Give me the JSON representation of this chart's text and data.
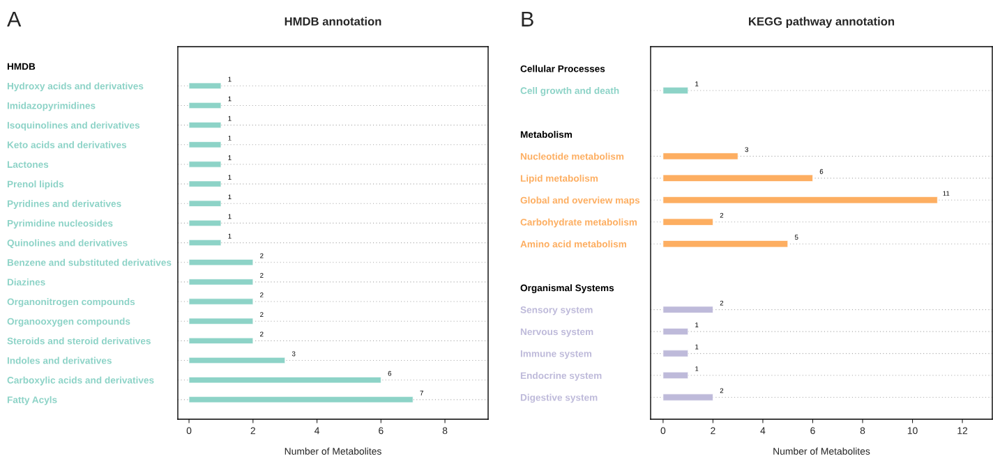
{
  "chart_data": [
    {
      "type": "bar",
      "orientation": "horizontal",
      "title": "HMDB annotation",
      "xlabel": "Number of Metabolites",
      "annotations": [
        "A"
      ],
      "categories": [
        "HMDB",
        "Hydroxy acids and derivatives",
        "Imidazopyrimidines",
        "Isoquinolines and derivatives",
        "Keto acids and derivatives",
        "Lactones",
        "Prenol lipids",
        "Pyridines and derivatives",
        "Pyrimidine nucleosides",
        "Quinolines and derivatives",
        "Benzene and substituted derivatives",
        "Diazines",
        "Organonitrogen compounds",
        "Organooxygen compounds",
        "Steroids and steroid derivatives",
        "Indoles and derivatives",
        "Carboxylic acids and derivatives",
        "Fatty Acyls"
      ],
      "series": [
        {
          "color": "#8dd3c7",
          "values": [
            null,
            1,
            1,
            1,
            1,
            1,
            1,
            1,
            1,
            1,
            2,
            2,
            2,
            2,
            2,
            3,
            6,
            7
          ]
        }
      ],
      "xlim": [
        -0.35,
        9.35
      ],
      "xticks": [
        0,
        2,
        4,
        6,
        8
      ],
      "grid": "y",
      "data_labels": true
    },
    {
      "type": "bar",
      "orientation": "horizontal",
      "title": "KEGG pathway annotation",
      "xlabel": "Number of Metabolites",
      "annotations": [
        "B"
      ],
      "categories": [
        "Cellular Processes",
        "Cell growth and death",
        null,
        "Metabolism",
        "Nucleotide metabolism",
        "Lipid metabolism",
        "Global and overview maps",
        "Carbohydrate metabolism",
        "Amino acid metabolism",
        null,
        "Organismal Systems",
        "Sensory system",
        "Nervous system",
        "Immune system",
        "Endocrine system",
        "Digestive system"
      ],
      "series": [
        {
          "color": "#8dd3c7",
          "values": [
            null,
            1,
            null,
            null,
            null,
            null,
            null,
            null,
            null,
            null,
            null,
            null,
            null,
            null,
            null,
            null
          ]
        },
        {
          "color": "#fdae61",
          "values": [
            null,
            null,
            null,
            null,
            3,
            6,
            11,
            2,
            5,
            null,
            null,
            null,
            null,
            null,
            null,
            null
          ]
        },
        {
          "color": "#bebada",
          "values": [
            null,
            null,
            null,
            null,
            null,
            null,
            null,
            null,
            null,
            null,
            null,
            2,
            1,
            1,
            1,
            2
          ]
        }
      ],
      "xlim": [
        -0.5,
        13.2
      ],
      "xticks": [
        0,
        2,
        4,
        6,
        8,
        10,
        12
      ],
      "grid": "y",
      "data_labels": true
    }
  ]
}
